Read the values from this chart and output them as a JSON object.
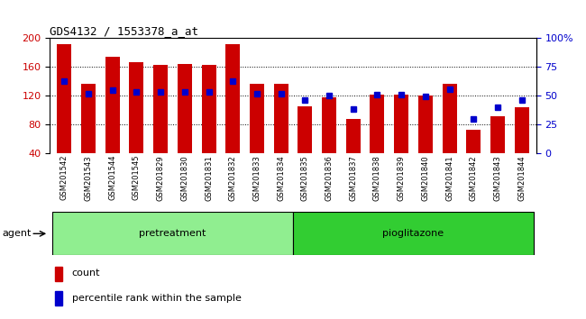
{
  "title": "GDS4132 / 1553378_a_at",
  "samples": [
    "GSM201542",
    "GSM201543",
    "GSM201544",
    "GSM201545",
    "GSM201829",
    "GSM201830",
    "GSM201831",
    "GSM201832",
    "GSM201833",
    "GSM201834",
    "GSM201835",
    "GSM201836",
    "GSM201837",
    "GSM201838",
    "GSM201839",
    "GSM201840",
    "GSM201841",
    "GSM201842",
    "GSM201843",
    "GSM201844"
  ],
  "counts": [
    192,
    136,
    174,
    167,
    163,
    164,
    163,
    192,
    136,
    137,
    105,
    118,
    88,
    122,
    122,
    120,
    136,
    72,
    92,
    104
  ],
  "percentile_ranks": [
    63,
    52,
    55,
    53,
    53,
    53,
    53,
    63,
    52,
    52,
    46,
    50,
    38,
    51,
    51,
    49,
    56,
    30,
    40,
    46
  ],
  "pretreatment_indices": [
    0,
    1,
    2,
    3,
    4,
    5,
    6,
    7,
    8,
    9
  ],
  "pioglitazone_indices": [
    10,
    11,
    12,
    13,
    14,
    15,
    16,
    17,
    18,
    19
  ],
  "group_labels": [
    "pretreatment",
    "pioglitazone"
  ],
  "pretreatment_color": "#90EE90",
  "pioglitazone_color": "#32CD32",
  "bar_color": "#CC0000",
  "blue_color": "#0000CC",
  "ylim_left": [
    40,
    200
  ],
  "ylim_right": [
    0,
    100
  ],
  "yticks_left": [
    40,
    80,
    120,
    160,
    200
  ],
  "yticks_right": [
    0,
    25,
    50,
    75,
    100
  ],
  "yticklabels_right": [
    "0",
    "25",
    "50",
    "75",
    "100%"
  ],
  "tick_label_color_left": "#CC0000",
  "tick_label_color_right": "#0000CC",
  "xtick_bg_color": "#C8C8C8",
  "fig_bg": "#FFFFFF",
  "bar_width": 0.6,
  "blue_marker_size": 5,
  "legend_count_color": "#CC0000",
  "legend_pct_color": "#0000CC"
}
